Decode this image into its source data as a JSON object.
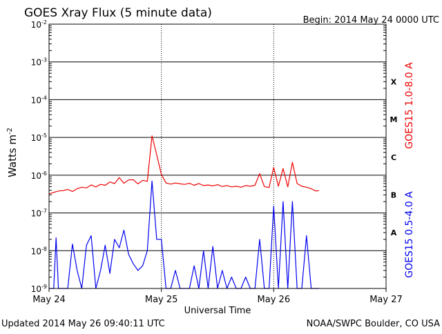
{
  "chart_data": {
    "type": "line",
    "title": "GOES Xray Flux (5 minute data)",
    "begin_label": "Begin:  2014 May 24 0000 UTC",
    "xlabel": "Universal Time",
    "ylabel": "Watts m",
    "ylabel_superscript": "-2",
    "y_scale": "log",
    "ylim": [
      1e-09,
      0.01
    ],
    "y_ticks": [
      {
        "value": 1e-09,
        "base": "10",
        "exp": "-9"
      },
      {
        "value": 1e-08,
        "base": "10",
        "exp": "-8"
      },
      {
        "value": 1e-07,
        "base": "10",
        "exp": "-7"
      },
      {
        "value": 1e-06,
        "base": "10",
        "exp": "-6"
      },
      {
        "value": 1e-05,
        "base": "10",
        "exp": "-5"
      },
      {
        "value": 0.0001,
        "base": "10",
        "exp": "-4"
      },
      {
        "value": 0.001,
        "base": "10",
        "exp": "-3"
      },
      {
        "value": 0.01,
        "base": "10",
        "exp": "-2"
      }
    ],
    "xlim": [
      "2014-05-24T00:00",
      "2014-05-27T00:00"
    ],
    "x_ticks": [
      {
        "value": "2014-05-24T00:00",
        "label": "May 24"
      },
      {
        "value": "2014-05-25T00:00",
        "label": "May 25"
      },
      {
        "value": "2014-05-26T00:00",
        "label": "May 26"
      },
      {
        "value": "2014-05-27T00:00",
        "label": "May 27"
      }
    ],
    "flare_classes": [
      {
        "label": "X",
        "value": 0.0003
      },
      {
        "label": "M",
        "value": 3e-05
      },
      {
        "label": "C",
        "value": 3e-06
      },
      {
        "label": "B",
        "value": 3e-07
      },
      {
        "label": "A",
        "value": 3e-08
      }
    ],
    "grid": true,
    "series": [
      {
        "name": "GOES15 1.0-8.0 A",
        "color": "#ee0000",
        "points": [
          [
            "2014-05-24T00:00",
            3.2e-07
          ],
          [
            "2014-05-24T01:00",
            3.5e-07
          ],
          [
            "2014-05-24T02:00",
            3.8e-07
          ],
          [
            "2014-05-24T03:00",
            3.9e-07
          ],
          [
            "2014-05-24T04:00",
            4.2e-07
          ],
          [
            "2014-05-24T05:00",
            3.7e-07
          ],
          [
            "2014-05-24T06:00",
            4.4e-07
          ],
          [
            "2014-05-24T07:00",
            4.8e-07
          ],
          [
            "2014-05-24T08:00",
            4.6e-07
          ],
          [
            "2014-05-24T09:00",
            5.5e-07
          ],
          [
            "2014-05-24T10:00",
            4.9e-07
          ],
          [
            "2014-05-24T11:00",
            5.7e-07
          ],
          [
            "2014-05-24T12:00",
            5.4e-07
          ],
          [
            "2014-05-24T13:00",
            6.6e-07
          ],
          [
            "2014-05-24T14:00",
            6e-07
          ],
          [
            "2014-05-24T15:00",
            8.6e-07
          ],
          [
            "2014-05-24T16:00",
            6.1e-07
          ],
          [
            "2014-05-24T17:00",
            7.5e-07
          ],
          [
            "2014-05-24T18:00",
            7.6e-07
          ],
          [
            "2014-05-24T19:00",
            5.9e-07
          ],
          [
            "2014-05-24T20:00",
            7.3e-07
          ],
          [
            "2014-05-24T21:00",
            6.9e-07
          ],
          [
            "2014-05-24T22:00",
            1.1e-05
          ],
          [
            "2014-05-24T23:00",
            3.5e-06
          ],
          [
            "2014-05-25T00:00",
            1.05e-06
          ],
          [
            "2014-05-25T01:00",
            6.2e-07
          ],
          [
            "2014-05-25T02:00",
            5.8e-07
          ],
          [
            "2014-05-25T03:00",
            6.2e-07
          ],
          [
            "2014-05-25T04:00",
            5.9e-07
          ],
          [
            "2014-05-25T05:00",
            5.7e-07
          ],
          [
            "2014-05-25T06:00",
            6.1e-07
          ],
          [
            "2014-05-25T07:00",
            5.4e-07
          ],
          [
            "2014-05-25T08:00",
            6e-07
          ],
          [
            "2014-05-25T09:00",
            5.3e-07
          ],
          [
            "2014-05-25T10:00",
            5.5e-07
          ],
          [
            "2014-05-25T11:00",
            5.2e-07
          ],
          [
            "2014-05-25T12:00",
            5.6e-07
          ],
          [
            "2014-05-25T13:00",
            5e-07
          ],
          [
            "2014-05-25T14:00",
            5.3e-07
          ],
          [
            "2014-05-25T15:00",
            4.9e-07
          ],
          [
            "2014-05-25T16:00",
            5.1e-07
          ],
          [
            "2014-05-25T17:00",
            4.8e-07
          ],
          [
            "2014-05-25T18:00",
            5.3e-07
          ],
          [
            "2014-05-25T19:00",
            5.1e-07
          ],
          [
            "2014-05-25T20:00",
            5.4e-07
          ],
          [
            "2014-05-25T21:00",
            1.1e-06
          ],
          [
            "2014-05-25T22:00",
            5e-07
          ],
          [
            "2014-05-25T23:00",
            4.7e-07
          ],
          [
            "2014-05-26T00:00",
            1.6e-06
          ],
          [
            "2014-05-26T01:00",
            5.1e-07
          ],
          [
            "2014-05-26T02:00",
            1.5e-06
          ],
          [
            "2014-05-26T03:00",
            4.9e-07
          ],
          [
            "2014-05-26T04:00",
            2.2e-06
          ],
          [
            "2014-05-26T05:00",
            6e-07
          ],
          [
            "2014-05-26T06:00",
            5.1e-07
          ],
          [
            "2014-05-26T07:00",
            4.8e-07
          ],
          [
            "2014-05-26T08:00",
            4.4e-07
          ],
          [
            "2014-05-26T09:00",
            3.8e-07
          ],
          [
            "2014-05-26T09:40",
            3.9e-07
          ]
        ]
      },
      {
        "name": "GOES15 0.5-4.0 A",
        "color": "#0000ee",
        "points": [
          [
            "2014-05-24T00:00",
            1e-09
          ],
          [
            "2014-05-24T01:00",
            1e-09
          ],
          [
            "2014-05-24T01:30",
            2.2e-08
          ],
          [
            "2014-05-24T02:00",
            1e-09
          ],
          [
            "2014-05-24T03:00",
            1e-09
          ],
          [
            "2014-05-24T04:00",
            1e-09
          ],
          [
            "2014-05-24T05:00",
            1.5e-08
          ],
          [
            "2014-05-24T06:00",
            3e-09
          ],
          [
            "2014-05-24T07:00",
            1e-09
          ],
          [
            "2014-05-24T08:00",
            1.4e-08
          ],
          [
            "2014-05-24T09:00",
            2.5e-08
          ],
          [
            "2014-05-24T10:00",
            1e-09
          ],
          [
            "2014-05-24T11:00",
            3e-09
          ],
          [
            "2014-05-24T12:00",
            1.4e-08
          ],
          [
            "2014-05-24T13:00",
            2.5e-09
          ],
          [
            "2014-05-24T14:00",
            2e-08
          ],
          [
            "2014-05-24T15:00",
            1.2e-08
          ],
          [
            "2014-05-24T16:00",
            3.5e-08
          ],
          [
            "2014-05-24T17:00",
            8e-09
          ],
          [
            "2014-05-24T18:00",
            4.5e-09
          ],
          [
            "2014-05-24T19:00",
            3e-09
          ],
          [
            "2014-05-24T20:00",
            4e-09
          ],
          [
            "2014-05-24T21:00",
            1e-08
          ],
          [
            "2014-05-24T22:00",
            7e-07
          ],
          [
            "2014-05-24T23:00",
            2e-08
          ],
          [
            "2014-05-25T00:00",
            2e-08
          ],
          [
            "2014-05-25T01:00",
            1e-09
          ],
          [
            "2014-05-25T02:00",
            1e-09
          ],
          [
            "2014-05-25T03:00",
            3e-09
          ],
          [
            "2014-05-25T04:00",
            1e-09
          ],
          [
            "2014-05-25T05:00",
            1e-09
          ],
          [
            "2014-05-25T06:00",
            1e-09
          ],
          [
            "2014-05-25T07:00",
            4e-09
          ],
          [
            "2014-05-25T08:00",
            1e-09
          ],
          [
            "2014-05-25T09:00",
            1e-08
          ],
          [
            "2014-05-25T10:00",
            1e-09
          ],
          [
            "2014-05-25T11:00",
            1.3e-08
          ],
          [
            "2014-05-25T12:00",
            1e-09
          ],
          [
            "2014-05-25T13:00",
            3e-09
          ],
          [
            "2014-05-25T14:00",
            1e-09
          ],
          [
            "2014-05-25T15:00",
            2e-09
          ],
          [
            "2014-05-25T16:00",
            1e-09
          ],
          [
            "2014-05-25T17:00",
            1e-09
          ],
          [
            "2014-05-25T18:00",
            2e-09
          ],
          [
            "2014-05-25T19:00",
            1e-09
          ],
          [
            "2014-05-25T20:00",
            1e-09
          ],
          [
            "2014-05-25T21:00",
            2e-08
          ],
          [
            "2014-05-25T22:00",
            1e-09
          ],
          [
            "2014-05-25T23:00",
            1e-09
          ],
          [
            "2014-05-26T00:00",
            1.5e-07
          ],
          [
            "2014-05-26T01:00",
            1e-09
          ],
          [
            "2014-05-26T02:00",
            2e-07
          ],
          [
            "2014-05-26T03:00",
            1e-09
          ],
          [
            "2014-05-26T04:00",
            2e-07
          ],
          [
            "2014-05-26T05:00",
            1e-09
          ],
          [
            "2014-05-26T06:00",
            1e-09
          ],
          [
            "2014-05-26T07:00",
            2.5e-08
          ],
          [
            "2014-05-26T08:00",
            1e-09
          ],
          [
            "2014-05-26T09:00",
            1e-09
          ],
          [
            "2014-05-26T09:40",
            1e-09
          ]
        ]
      }
    ]
  },
  "footer": {
    "updated": "Updated 2014 May 26 09:40:11 UTC",
    "credit": "NOAA/SWPC Boulder, CO USA"
  }
}
